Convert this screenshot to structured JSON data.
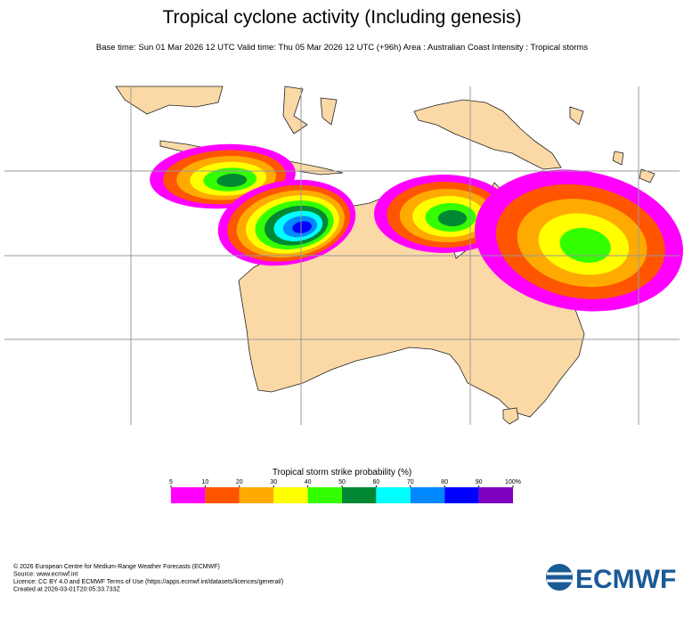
{
  "header": {
    "title": "Tropical cyclone activity (Including genesis)",
    "subtitle": "Base time: Sun 01 Mar 2026 12 UTC Valid time: Thu 05 Mar 2026 12 UTC (+96h) Area : Australian Coast Intensity : Tropical storms"
  },
  "colorbar": {
    "title": "Tropical storm strike probability (%)",
    "ticks": [
      5,
      10,
      20,
      30,
      40,
      50,
      60,
      70,
      80,
      90,
      {
        "value": 100,
        "label": "100%"
      }
    ],
    "colors": [
      "#ff00ff",
      "#ff5500",
      "#ffaa00",
      "#ffff00",
      "#33ff00",
      "#008833",
      "#00ffff",
      "#0088ff",
      "#0000ff",
      "#7f00bf"
    ]
  },
  "footer": {
    "lines": [
      "© 2026 European Centre for Medium-Range Weather Forecasts (ECMWF)",
      "Source: www.ecmwf.int",
      "Licence: CC BY 4.0 and ECMWF Terms of Use (https://apps.ecmwf.int/datasets/licences/general/)",
      "Created at 2026-03-01T20:05:33.733Z"
    ],
    "logo": "ECMWF"
  }
}
